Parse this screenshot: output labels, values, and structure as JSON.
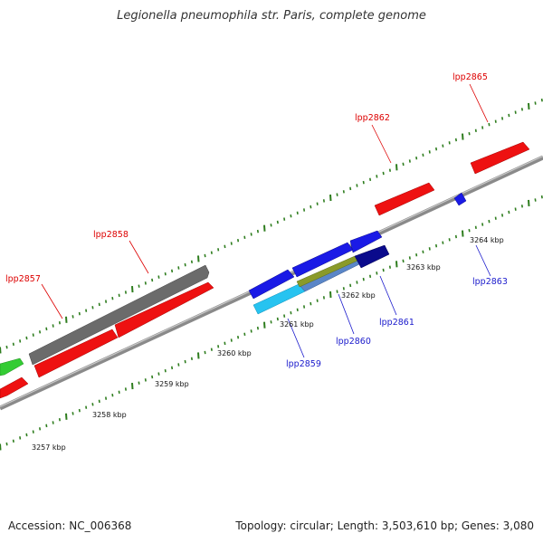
{
  "title": "Legionella pneumophila str. Paris, complete genome",
  "footer": {
    "accession": "Accession: NC_006368",
    "summary": "Topology: circular; Length: 3,503,610 bp; Genes: 3,080"
  },
  "colors": {
    "backbone": "#8a8a8a",
    "tick": "#2e7d1e",
    "forward_label": "#dd0000",
    "reverse_label": "#1a1acc",
    "red": "#ee1111",
    "gray": "#6b6b6b",
    "blue": "#1a1ae6",
    "navy": "#0a0a8c",
    "olive": "#8a9a2a",
    "cyan": "#27c3f0",
    "steel": "#5a86c8",
    "green": "#33cc33"
  },
  "kbp_labels": [
    "3257 kbp",
    "3258 kbp",
    "3259 kbp",
    "3260 kbp",
    "3261 kbp",
    "3262 kbp",
    "3263 kbp",
    "3264 kbp"
  ],
  "gene_labels": [
    "lpp2857",
    "lpp2858",
    "lpp2862",
    "lpp2865",
    "lpp2859",
    "lpp2860",
    "lpp2861",
    "lpp2863"
  ]
}
